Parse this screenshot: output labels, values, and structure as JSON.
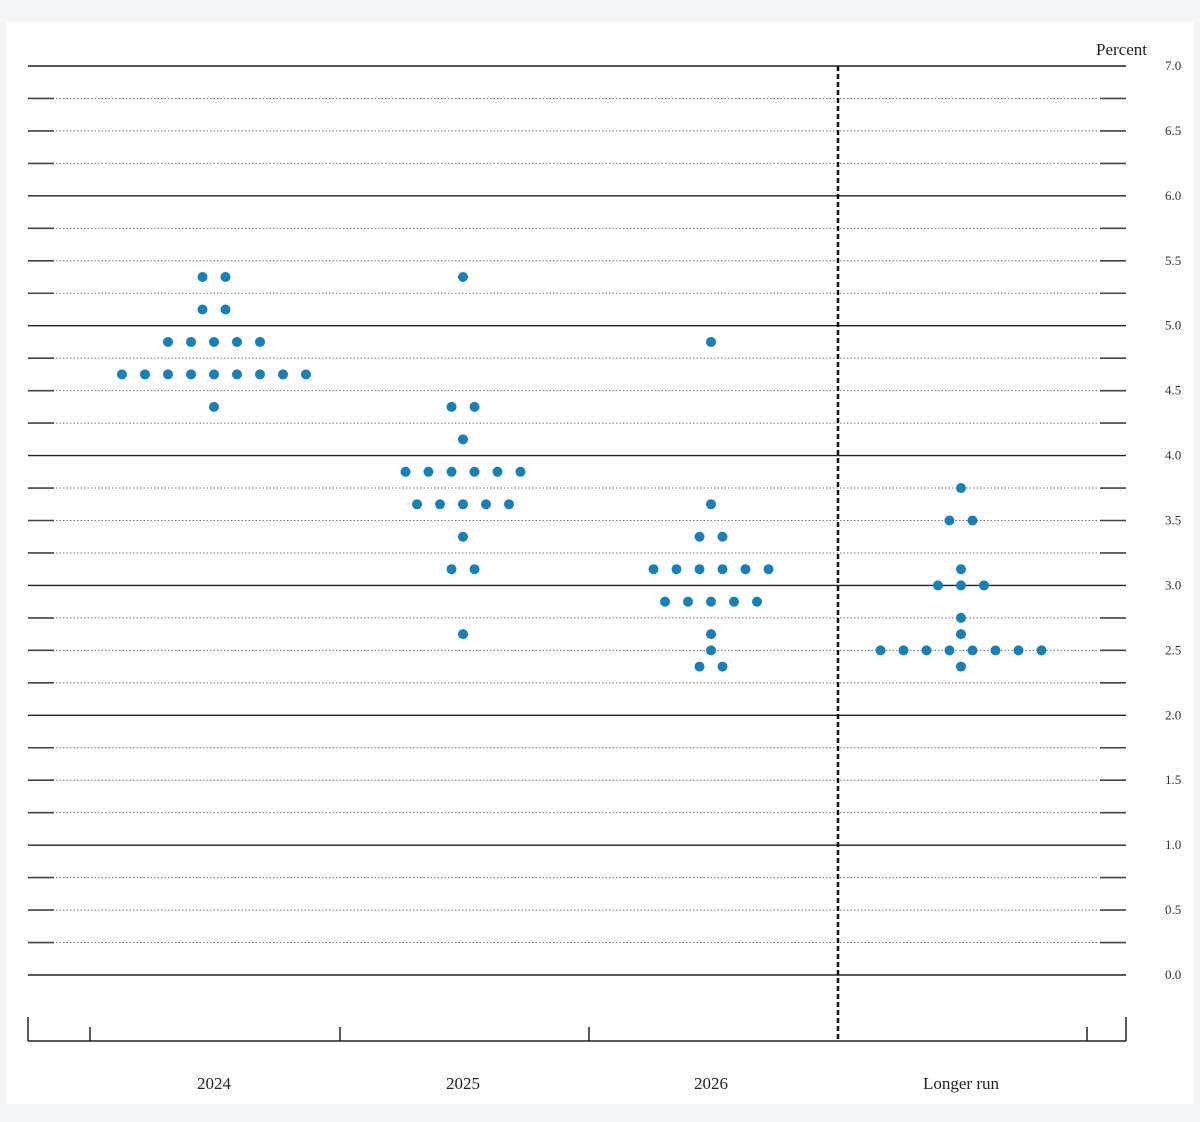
{
  "chart_data": {
    "type": "scatter",
    "unit_label": "Percent",
    "ylim": [
      0,
      7
    ],
    "y_ticks": [
      "0.0",
      "0.5",
      "1.0",
      "1.5",
      "2.0",
      "2.5",
      "3.0",
      "3.5",
      "4.0",
      "4.5",
      "5.0",
      "5.5",
      "6.0",
      "6.5",
      "7.0"
    ],
    "categories": [
      "2024",
      "2025",
      "2026",
      "Longer run"
    ],
    "series_color": "#1a7fb5",
    "dots": [
      {
        "category": "2024",
        "rows": [
          {
            "y": 5.375,
            "count": 2
          },
          {
            "y": 5.125,
            "count": 2
          },
          {
            "y": 4.875,
            "count": 5
          },
          {
            "y": 4.625,
            "count": 9
          },
          {
            "y": 4.375,
            "count": 1
          }
        ]
      },
      {
        "category": "2025",
        "rows": [
          {
            "y": 5.375,
            "count": 1
          },
          {
            "y": 4.375,
            "count": 2
          },
          {
            "y": 4.125,
            "count": 1
          },
          {
            "y": 3.875,
            "count": 6
          },
          {
            "y": 3.625,
            "count": 5
          },
          {
            "y": 3.375,
            "count": 1
          },
          {
            "y": 3.125,
            "count": 2
          },
          {
            "y": 2.625,
            "count": 1
          }
        ]
      },
      {
        "category": "2026",
        "rows": [
          {
            "y": 4.875,
            "count": 1
          },
          {
            "y": 3.625,
            "count": 1
          },
          {
            "y": 3.375,
            "count": 2
          },
          {
            "y": 3.125,
            "count": 6
          },
          {
            "y": 2.875,
            "count": 5
          },
          {
            "y": 2.625,
            "count": 1
          },
          {
            "y": 2.5,
            "count": 1
          },
          {
            "y": 2.375,
            "count": 2
          }
        ]
      },
      {
        "category": "Longer run",
        "rows": [
          {
            "y": 3.75,
            "count": 1
          },
          {
            "y": 3.5,
            "count": 2
          },
          {
            "y": 3.125,
            "count": 1
          },
          {
            "y": 3.0,
            "count": 3
          },
          {
            "y": 2.75,
            "count": 1
          },
          {
            "y": 2.625,
            "count": 1
          },
          {
            "y": 2.5,
            "count": 8
          },
          {
            "y": 2.375,
            "count": 1
          }
        ]
      }
    ]
  }
}
